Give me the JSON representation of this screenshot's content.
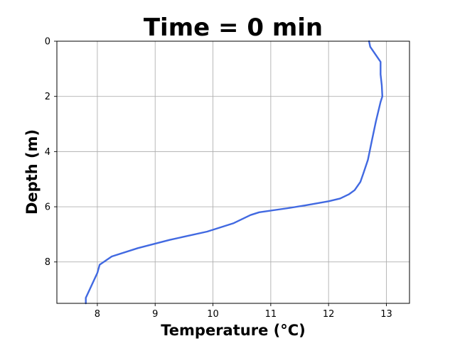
{
  "chart_data": {
    "type": "line",
    "title": "Time = 0 min",
    "xlabel": "Temperature (°C)",
    "ylabel": "Depth (m)",
    "xlim": [
      7.3,
      13.4
    ],
    "ylim": [
      9.5,
      0
    ],
    "y_inverted": true,
    "grid": true,
    "x_ticks": [
      8,
      9,
      10,
      11,
      12,
      13
    ],
    "y_ticks": [
      0,
      2,
      4,
      6,
      8
    ],
    "series": [
      {
        "color": "#4169e1",
        "x": [
          12.7,
          12.72,
          12.9,
          12.9,
          12.92,
          12.93,
          12.9,
          12.82,
          12.75,
          12.68,
          12.6,
          12.55,
          12.45,
          12.35,
          12.2,
          12.0,
          11.6,
          11.3,
          10.8,
          10.65,
          10.35,
          9.9,
          9.25,
          8.7,
          8.25,
          8.04,
          8.0,
          7.8,
          7.8
        ],
        "y": [
          0,
          0.2,
          0.75,
          1.2,
          1.6,
          2.0,
          2.2,
          2.9,
          3.6,
          4.3,
          4.8,
          5.1,
          5.4,
          5.55,
          5.7,
          5.8,
          5.95,
          6.05,
          6.2,
          6.3,
          6.6,
          6.9,
          7.2,
          7.5,
          7.8,
          8.1,
          8.4,
          9.3,
          9.5
        ]
      }
    ]
  }
}
